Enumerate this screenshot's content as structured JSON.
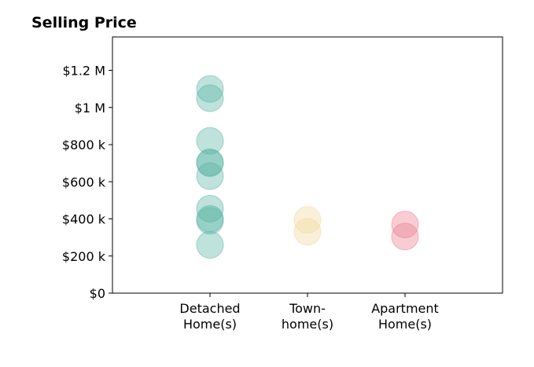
{
  "chart_data": {
    "type": "scatter",
    "title": "Selling Price",
    "xlabel": "",
    "ylabel": "",
    "ylim": [
      0,
      1380000
    ],
    "y_ticks": [
      {
        "value": 0,
        "label": "$0"
      },
      {
        "value": 200000,
        "label": "$200 k"
      },
      {
        "value": 400000,
        "label": "$400 k"
      },
      {
        "value": 600000,
        "label": "$600 k"
      },
      {
        "value": 800000,
        "label": "$800 k"
      },
      {
        "value": 1000000,
        "label": "$1 M"
      },
      {
        "value": 1200000,
        "label": "$1.2 M"
      }
    ],
    "categories": [
      {
        "lines": [
          "Detached",
          "Home(s)"
        ]
      },
      {
        "lines": [
          "Town-",
          "home(s)"
        ]
      },
      {
        "lines": [
          "Apartment",
          "Home(s)"
        ]
      }
    ],
    "grid": false,
    "series": [
      {
        "category_index": 0,
        "color": "#56b4a3",
        "values": [
          1100000,
          1050000,
          820000,
          705000,
          700000,
          630000,
          455000,
          400000,
          390000,
          260000
        ]
      },
      {
        "category_index": 1,
        "color": "#f1d89a",
        "values": [
          395000,
          330000
        ]
      },
      {
        "category_index": 2,
        "color": "#ea7c8c",
        "values": [
          370000,
          305000
        ]
      }
    ]
  }
}
